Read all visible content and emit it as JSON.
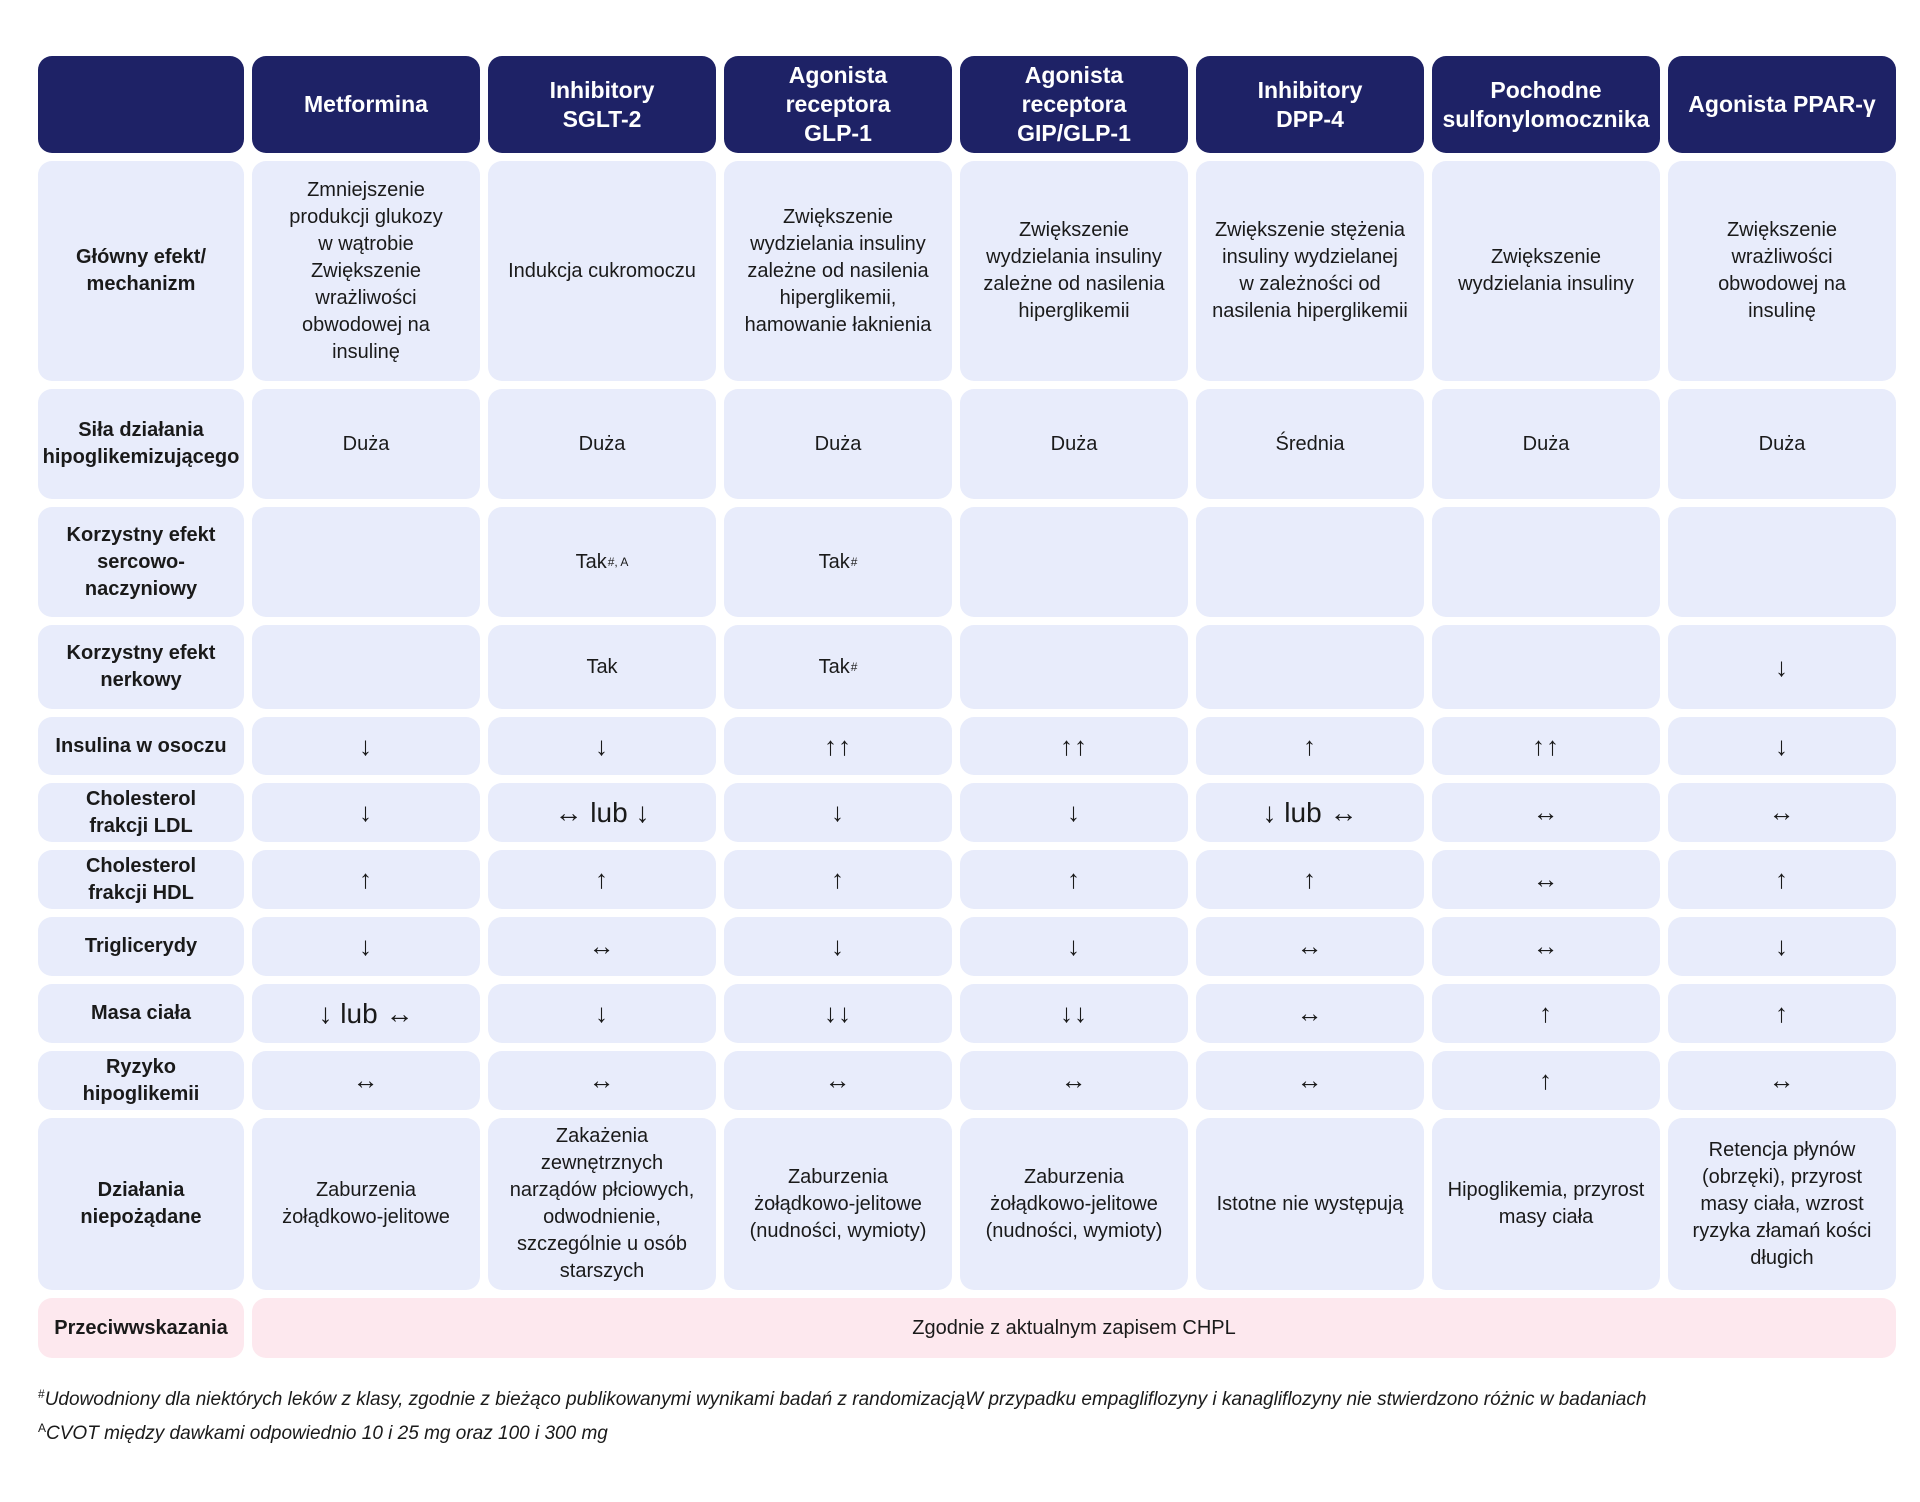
{
  "headers": [
    "",
    "Metformina",
    "Inhibitory\nSGLT-2",
    "Agonista receptora\nGLP-1",
    "Agonista receptora\nGIP/GLP-1",
    "Inhibitory\nDPP-4",
    "Pochodne\nsulfonylomocznika",
    "Agonista PPAR-γ"
  ],
  "rows": [
    {
      "label": "Główny efekt/\nmechanizm",
      "cells": [
        {
          "text": "Zmniejszenie\nprodukcji glukozy\nw wątrobie\nZwiększenie\nwrażliwości\nobwodowej na\ninsulinę"
        },
        {
          "text": "Indukcja cukromoczu"
        },
        {
          "text": "Zwiększenie\nwydzielania insuliny\nzależne od nasilenia\nhiperglikemii,\nhamowanie łaknienia"
        },
        {
          "text": "Zwiększenie\nwydzielania insuliny\nzależne od nasilenia\nhiperglikemii"
        },
        {
          "text": "Zwiększenie stężenia\ninsuliny wydzielanej\nw zależności od\nnasilenia hiperglikemii"
        },
        {
          "text": "Zwiększenie\nwydzielania insuliny"
        },
        {
          "text": "Zwiększenie\nwrażliwości\nobwodowej na\ninsulinę"
        }
      ]
    },
    {
      "label": "Siła działania\nhipoglikemizującego",
      "cells": [
        {
          "text": "Duża"
        },
        {
          "text": "Duża"
        },
        {
          "text": "Duża"
        },
        {
          "text": "Duża"
        },
        {
          "text": "Średnia"
        },
        {
          "text": "Duża"
        },
        {
          "text": "Duża"
        }
      ]
    },
    {
      "label": "Korzystny efekt\nsercowo-naczyniowy",
      "cells": [
        {
          "text": ""
        },
        {
          "text": "Tak",
          "sup": "#, A"
        },
        {
          "text": "Tak",
          "sup": "#"
        },
        {
          "text": ""
        },
        {
          "text": ""
        },
        {
          "text": ""
        },
        {
          "text": ""
        }
      ]
    },
    {
      "label": "Korzystny efekt\nnerkowy",
      "cells": [
        {
          "text": ""
        },
        {
          "text": "Tak"
        },
        {
          "text": "Tak",
          "sup": "#"
        },
        {
          "text": ""
        },
        {
          "text": ""
        },
        {
          "text": ""
        },
        {
          "text": "↓",
          "arrow": true
        }
      ]
    },
    {
      "label": "Insulina w osoczu",
      "cells": [
        {
          "text": "↓",
          "arrow": true
        },
        {
          "text": "↓",
          "arrow": true
        },
        {
          "text": "↑↑",
          "arrow": true
        },
        {
          "text": "↑↑",
          "arrow": true
        },
        {
          "text": "↑",
          "arrow": true
        },
        {
          "text": "↑↑",
          "arrow": true
        },
        {
          "text": "↓",
          "arrow": true
        }
      ]
    },
    {
      "label": "Cholesterol\nfrakcji LDL",
      "cells": [
        {
          "text": "↓",
          "arrow": true
        },
        {
          "text": "↔ lub ↓",
          "mixed": true
        },
        {
          "text": "↓",
          "arrow": true
        },
        {
          "text": "↓",
          "arrow": true
        },
        {
          "text": "↓ lub ↔",
          "mixed": true
        },
        {
          "text": "↔",
          "arrow": true
        },
        {
          "text": "↔",
          "arrow": true
        }
      ]
    },
    {
      "label": "Cholesterol\nfrakcji HDL",
      "cells": [
        {
          "text": "↑",
          "arrow": true
        },
        {
          "text": "↑",
          "arrow": true
        },
        {
          "text": "↑",
          "arrow": true
        },
        {
          "text": "↑",
          "arrow": true
        },
        {
          "text": "↑",
          "arrow": true
        },
        {
          "text": "↔",
          "arrow": true
        },
        {
          "text": "↑",
          "arrow": true
        }
      ]
    },
    {
      "label": "Triglicerydy",
      "cells": [
        {
          "text": "↓",
          "arrow": true
        },
        {
          "text": "↔",
          "arrow": true
        },
        {
          "text": "↓",
          "arrow": true
        },
        {
          "text": "↓",
          "arrow": true
        },
        {
          "text": "↔",
          "arrow": true
        },
        {
          "text": "↔",
          "arrow": true
        },
        {
          "text": "↓",
          "arrow": true
        }
      ]
    },
    {
      "label": "Masa ciała",
      "cells": [
        {
          "text": "↓ lub ↔",
          "mixed": true
        },
        {
          "text": "↓",
          "arrow": true
        },
        {
          "text": "↓↓",
          "arrow": true
        },
        {
          "text": "↓↓",
          "arrow": true
        },
        {
          "text": "↔",
          "arrow": true
        },
        {
          "text": "↑",
          "arrow": true
        },
        {
          "text": "↑",
          "arrow": true
        }
      ]
    },
    {
      "label": "Ryzyko\nhipoglikemii",
      "cells": [
        {
          "text": "↔",
          "arrow": true
        },
        {
          "text": "↔",
          "arrow": true
        },
        {
          "text": "↔",
          "arrow": true
        },
        {
          "text": "↔",
          "arrow": true
        },
        {
          "text": "↔",
          "arrow": true
        },
        {
          "text": "↑",
          "arrow": true
        },
        {
          "text": "↔",
          "arrow": true
        }
      ]
    },
    {
      "label": "Działania\nniepożądane",
      "cells": [
        {
          "text": "Zaburzenia\nżołądkowo-jelitowe"
        },
        {
          "text": "Zakażenia\nzewnętrznych\nnarządów płciowych,\nodwodnienie,\nszczególnie u osób\nstarszych"
        },
        {
          "text": "Zaburzenia\nżołądkowo-jelitowe\n(nudności, wymioty)"
        },
        {
          "text": "Zaburzenia\nżołądkowo-jelitowe\n(nudności, wymioty)"
        },
        {
          "text": "Istotne nie występują"
        },
        {
          "text": "Hipoglikemia, przyrost\nmasy ciała"
        },
        {
          "text": "Retencja płynów\n(obrzęki), przyrost\nmasy ciała, wzrost\nryzyka złamań kości\ndługich"
        }
      ]
    }
  ],
  "contraindications": {
    "label": "Przeciwwskazania",
    "text": "Zgodnie z aktualnym zapisem CHPL"
  },
  "footnotes": [
    {
      "mark": "#",
      "text": "Udowodniony dla niektórych leków z klasy, zgodnie z bieżąco publikowanymi wynikami badań z randomizacjąW przypadku empagliflozyny i kanagliflozyny nie stwierdzono różnic w badaniach"
    },
    {
      "mark": "A",
      "text": "CVOT między dawkami odpowiednio 10 i 25 mg oraz 100 i 300 mg"
    }
  ]
}
